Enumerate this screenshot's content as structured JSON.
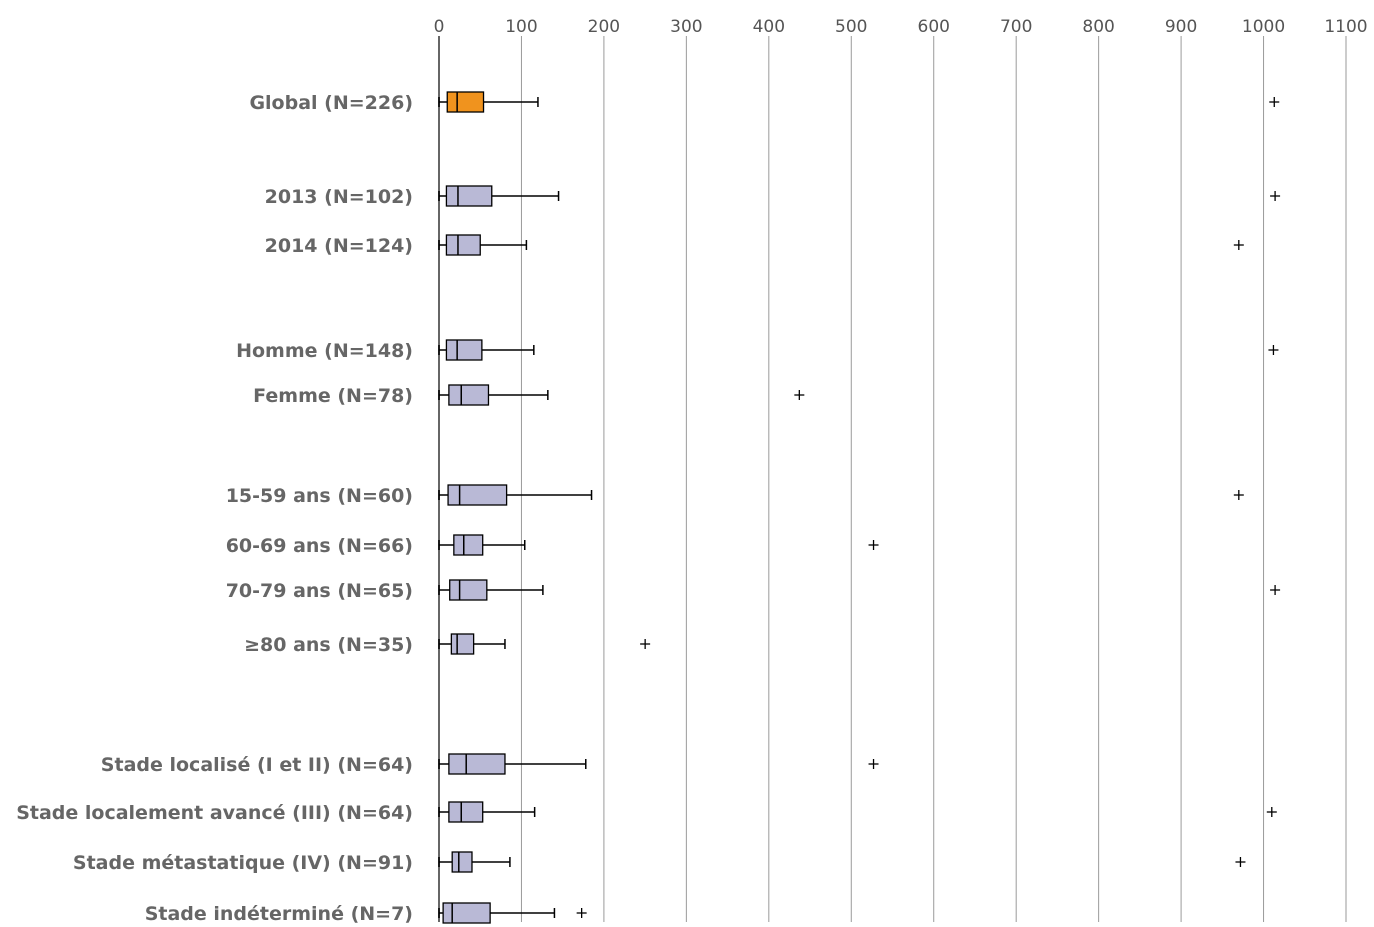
{
  "chart_data": {
    "type": "boxplot",
    "title": "",
    "xlabel": "",
    "ylabel": "",
    "xlim": [
      0,
      1100
    ],
    "xticks": [
      0,
      100,
      200,
      300,
      400,
      500,
      600,
      700,
      800,
      900,
      1000,
      1100
    ],
    "grid": "vertical",
    "colors": {
      "highlight": "#f0931e",
      "default": "#b9b9d6"
    },
    "categories": [
      {
        "label": "Global (N=226)",
        "highlight": true,
        "min": 0,
        "q1": 10,
        "median": 22,
        "q3": 54,
        "max": 120,
        "outliers": [
          1013
        ]
      },
      {
        "label": "2013 (N=102)",
        "highlight": false,
        "min": 0,
        "q1": 9,
        "median": 23,
        "q3": 64,
        "max": 145,
        "outliers": [
          1014
        ]
      },
      {
        "label": "2014 (N=124)",
        "highlight": false,
        "min": 0,
        "q1": 9,
        "median": 23,
        "q3": 50,
        "max": 106,
        "outliers": [
          970
        ]
      },
      {
        "label": "Homme (N=148)",
        "highlight": false,
        "min": 0,
        "q1": 9,
        "median": 22,
        "q3": 52,
        "max": 115,
        "outliers": [
          1012
        ]
      },
      {
        "label": "Femme (N=78)",
        "highlight": false,
        "min": 0,
        "q1": 12,
        "median": 27,
        "q3": 60,
        "max": 132,
        "outliers": [
          437
        ]
      },
      {
        "label": "15-59 ans (N=60)",
        "highlight": false,
        "min": 0,
        "q1": 11,
        "median": 25,
        "q3": 82,
        "max": 185,
        "outliers": [
          970
        ]
      },
      {
        "label": "60-69 ans (N=66)",
        "highlight": false,
        "min": 0,
        "q1": 18,
        "median": 30,
        "q3": 53,
        "max": 104,
        "outliers": [
          527
        ]
      },
      {
        "label": "70-79 ans (N=65)",
        "highlight": false,
        "min": 0,
        "q1": 13,
        "median": 25,
        "q3": 58,
        "max": 126,
        "outliers": [
          1014
        ]
      },
      {
        "label": "≥80 ans (N=35)",
        "highlight": false,
        "min": 0,
        "q1": 15,
        "median": 22,
        "q3": 42,
        "max": 80,
        "outliers": [
          250
        ]
      },
      {
        "label": "Stade localisé (I et II) (N=64)",
        "highlight": false,
        "min": 0,
        "q1": 12,
        "median": 33,
        "q3": 80,
        "max": 178,
        "outliers": [
          527
        ]
      },
      {
        "label": "Stade localement avancé (III) (N=64)",
        "highlight": false,
        "min": 0,
        "q1": 12,
        "median": 27,
        "q3": 53,
        "max": 116,
        "outliers": [
          1010
        ]
      },
      {
        "label": "Stade métastatique (IV) (N=91)",
        "highlight": false,
        "min": 0,
        "q1": 16,
        "median": 24,
        "q3": 40,
        "max": 86,
        "outliers": [
          972
        ]
      },
      {
        "label": "Stade indéterminé (N=7)",
        "highlight": false,
        "min": 0,
        "q1": 5,
        "median": 16,
        "q3": 62,
        "max": 140,
        "outliers": [
          173
        ]
      }
    ]
  }
}
